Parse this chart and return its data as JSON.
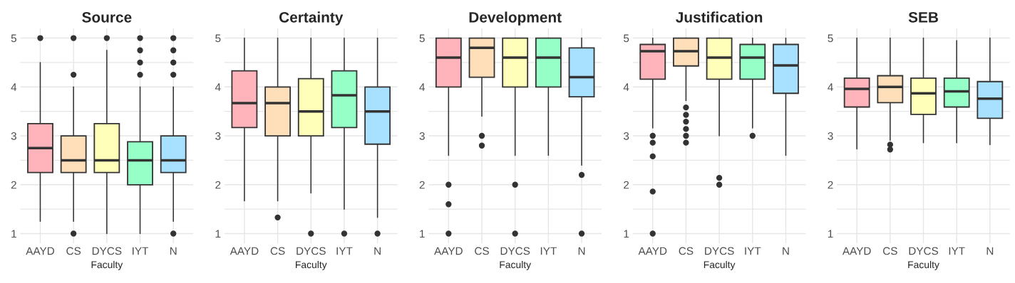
{
  "chart_data": [
    {
      "type": "box",
      "title": "Source",
      "xlabel": "Faculty",
      "categories": [
        "AAYD",
        "CS",
        "DYCS",
        "IYT",
        "N"
      ],
      "colors": [
        "#ffb3ba",
        "#ffdfba",
        "#ffffba",
        "#96ffc8",
        "#a8e0ff"
      ],
      "ylim": [
        0.8,
        5.2
      ],
      "yticks": [
        1,
        {
          "value": 1.5,
          "label": null
        },
        2,
        {
          "value": 2.5,
          "label": null
        },
        3,
        {
          "value": 3.5,
          "label": null
        },
        4,
        {
          "value": 4.5,
          "label": null
        },
        5
      ],
      "grid": true,
      "boxes": [
        {
          "low": 1.25,
          "q1": 2.25,
          "median": 2.75,
          "q3": 3.25,
          "high": 4.5,
          "outliers": [
            5
          ]
        },
        {
          "low": 1.25,
          "q1": 2.25,
          "median": 2.5,
          "q3": 3.0,
          "high": 4.0,
          "outliers": [
            1,
            4.25,
            5
          ]
        },
        {
          "low": 1.0,
          "q1": 2.25,
          "median": 2.5,
          "q3": 3.25,
          "high": 4.75,
          "outliers": [
            5
          ]
        },
        {
          "low": 1.0,
          "q1": 2.0,
          "median": 2.5,
          "q3": 2.88,
          "high": 4.0,
          "outliers": [
            4.25,
            4.5,
            4.75,
            5
          ]
        },
        {
          "low": 1.25,
          "q1": 2.25,
          "median": 2.5,
          "q3": 3.0,
          "high": 4.0,
          "outliers": [
            1,
            4.25,
            4.5,
            4.75,
            5
          ]
        }
      ]
    },
    {
      "type": "box",
      "title": "Certainty",
      "xlabel": "Faculty",
      "categories": [
        "AAYD",
        "CS",
        "DYCS",
        "IYT",
        "N"
      ],
      "colors": [
        "#ffb3ba",
        "#ffdfba",
        "#ffffba",
        "#96ffc8",
        "#a8e0ff"
      ],
      "ylim": [
        0.8,
        5.2
      ],
      "yticks": [
        1,
        {
          "value": 1.5,
          "label": null
        },
        2,
        {
          "value": 2.5,
          "label": null
        },
        3,
        {
          "value": 3.5,
          "label": null
        },
        4,
        {
          "value": 4.5,
          "label": null
        },
        5
      ],
      "grid": true,
      "boxes": [
        {
          "low": 1.67,
          "q1": 3.17,
          "median": 3.67,
          "q3": 4.33,
          "high": 5
        },
        {
          "low": 1.67,
          "q1": 3.0,
          "median": 3.67,
          "q3": 4.0,
          "high": 5,
          "outliers": [
            1.33
          ]
        },
        {
          "low": 1.83,
          "q1": 3.0,
          "median": 3.5,
          "q3": 4.17,
          "high": 5,
          "outliers": [
            1
          ]
        },
        {
          "low": 1.5,
          "q1": 3.17,
          "median": 3.83,
          "q3": 4.33,
          "high": 5,
          "outliers": [
            1
          ]
        },
        {
          "low": 1.33,
          "q1": 2.83,
          "median": 3.5,
          "q3": 4.0,
          "high": 5,
          "outliers": [
            1
          ]
        }
      ]
    },
    {
      "type": "box",
      "title": "Development",
      "xlabel": "Faculty",
      "categories": [
        "AAYD",
        "CS",
        "DYCS",
        "IYT",
        "N"
      ],
      "colors": [
        "#ffb3ba",
        "#ffdfba",
        "#ffffba",
        "#96ffc8",
        "#a8e0ff"
      ],
      "ylim": [
        0.8,
        5.2
      ],
      "yticks": [
        1,
        {
          "value": 1.5,
          "label": null
        },
        2,
        {
          "value": 2.5,
          "label": null
        },
        3,
        {
          "value": 3.5,
          "label": null
        },
        4,
        {
          "value": 4.5,
          "label": null
        },
        5
      ],
      "grid": true,
      "boxes": [
        {
          "low": 2.6,
          "q1": 4.0,
          "median": 4.6,
          "q3": 5,
          "high": 5,
          "outliers": [
            1,
            1.6,
            2
          ]
        },
        {
          "low": 3.4,
          "q1": 4.2,
          "median": 4.8,
          "q3": 5,
          "high": 5,
          "outliers": [
            2.8,
            3.0
          ]
        },
        {
          "low": 2.6,
          "q1": 4.0,
          "median": 4.6,
          "q3": 5,
          "high": 5,
          "outliers": [
            1,
            2
          ]
        },
        {
          "low": 2.6,
          "q1": 4.0,
          "median": 4.6,
          "q3": 5,
          "high": 5
        },
        {
          "low": 2.4,
          "q1": 3.8,
          "median": 4.2,
          "q3": 4.8,
          "high": 5,
          "outliers": [
            1,
            2.2
          ]
        }
      ]
    },
    {
      "type": "box",
      "title": "Justification",
      "xlabel": "Faculty",
      "categories": [
        "AAYD",
        "CS",
        "DYCS",
        "IYT",
        "N"
      ],
      "colors": [
        "#ffb3ba",
        "#ffdfba",
        "#ffffba",
        "#96ffc8",
        "#a8e0ff"
      ],
      "ylim": [
        0.8,
        5.2
      ],
      "yticks": [
        1,
        {
          "value": 1.5,
          "label": null
        },
        2,
        {
          "value": 2.5,
          "label": null
        },
        3,
        {
          "value": 3.5,
          "label": null
        },
        4,
        {
          "value": 4.5,
          "label": null
        },
        5
      ],
      "grid": true,
      "boxes": [
        {
          "low": 3.16,
          "q1": 4.16,
          "median": 4.73,
          "q3": 4.87,
          "high": 5,
          "outliers": [
            1,
            1.86,
            2.58,
            2.86,
            3.0
          ]
        },
        {
          "low": 3.72,
          "q1": 4.43,
          "median": 4.73,
          "q3": 5,
          "high": 5,
          "outliers": [
            2.86,
            3.0,
            3.14,
            3.29,
            3.43,
            3.58
          ]
        },
        {
          "low": 3.0,
          "q1": 4.16,
          "median": 4.6,
          "q3": 5,
          "high": 5,
          "outliers": [
            2.0,
            2.14
          ]
        },
        {
          "low": 3.16,
          "q1": 4.16,
          "median": 4.6,
          "q3": 4.87,
          "high": 5,
          "outliers": [
            3.0
          ]
        },
        {
          "low": 2.6,
          "q1": 3.87,
          "median": 4.44,
          "q3": 4.87,
          "high": 5
        }
      ]
    },
    {
      "type": "box",
      "title": "SEB",
      "xlabel": "Faculty",
      "categories": [
        "AAYD",
        "CS",
        "DYCS",
        "IYT",
        "N"
      ],
      "colors": [
        "#ffb3ba",
        "#ffdfba",
        "#ffffba",
        "#96ffc8",
        "#a8e0ff"
      ],
      "ylim": [
        0.8,
        5.2
      ],
      "yticks": [
        1,
        {
          "value": 1.5,
          "label": null
        },
        2,
        {
          "value": 2.5,
          "label": null
        },
        3,
        {
          "value": 3.5,
          "label": null
        },
        4,
        {
          "value": 4.5,
          "label": null
        },
        5
      ],
      "grid": true,
      "boxes": [
        {
          "low": 2.73,
          "q1": 3.59,
          "median": 3.96,
          "q3": 4.18,
          "high": 5
        },
        {
          "low": 2.91,
          "q1": 3.68,
          "median": 4.0,
          "q3": 4.23,
          "high": 5,
          "outliers": [
            2.72,
            2.82
          ]
        },
        {
          "low": 2.86,
          "q1": 3.44,
          "median": 3.87,
          "q3": 4.18,
          "high": 5
        },
        {
          "low": 2.86,
          "q1": 3.59,
          "median": 3.91,
          "q3": 4.18,
          "high": 4.95
        },
        {
          "low": 2.82,
          "q1": 3.36,
          "median": 3.76,
          "q3": 4.11,
          "high": 5
        }
      ]
    }
  ]
}
